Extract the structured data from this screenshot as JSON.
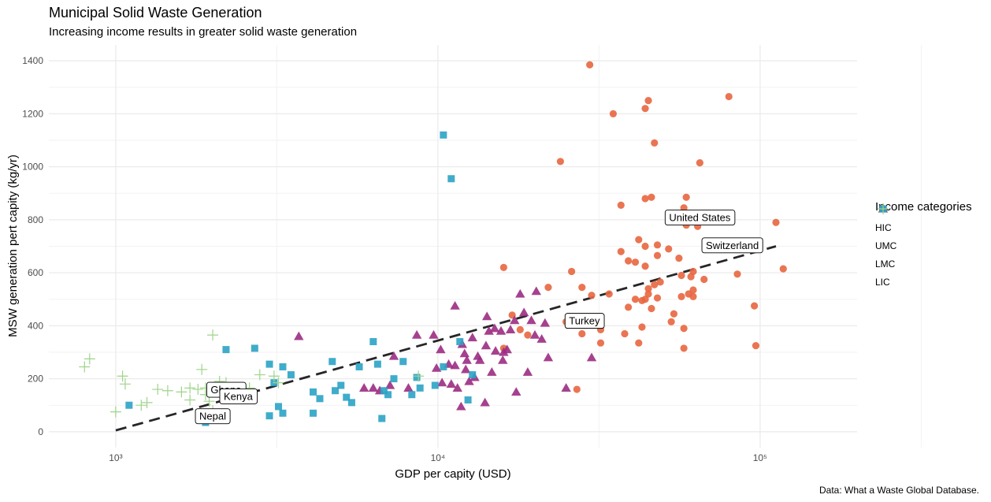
{
  "title": "Municipal Solid Waste Generation",
  "subtitle": "Increasing income results in greater solid waste generation",
  "caption": "Data: What a Waste Global Database.",
  "chart_data": {
    "type": "scatter",
    "x_scale": "log10",
    "xlabel": "GDP per capity (USD)",
    "ylabel": "MSW generation pert capity (kg/yr)",
    "xlim": [
      620,
      200000
    ],
    "ylim": [
      -60,
      1460
    ],
    "grid": true,
    "x_ticks": [
      1000,
      10000,
      100000
    ],
    "x_tick_labels": [
      "10³",
      "10⁴",
      "10⁵"
    ],
    "y_ticks": [
      0,
      200,
      400,
      600,
      800,
      1000,
      1200,
      1400
    ],
    "y_tick_labels": [
      "0",
      "200",
      "400",
      "600",
      "800",
      "1000",
      "1200",
      "1400"
    ],
    "legend": {
      "title": "Income categories",
      "position": "right"
    },
    "series": [
      {
        "name": "HIC",
        "marker": "circle",
        "color": "#E8663F",
        "points": [
          [
            29600,
            1385
          ],
          [
            80000,
            1265
          ],
          [
            45000,
            1250
          ],
          [
            44000,
            1220
          ],
          [
            35000,
            1200
          ],
          [
            47000,
            1090
          ],
          [
            24000,
            1020
          ],
          [
            65000,
            1015
          ],
          [
            59000,
            885
          ],
          [
            46000,
            885
          ],
          [
            44000,
            880
          ],
          [
            37000,
            855
          ],
          [
            58000,
            845
          ],
          [
            59000,
            780
          ],
          [
            64000,
            775
          ],
          [
            112000,
            790
          ],
          [
            42000,
            725
          ],
          [
            44000,
            700
          ],
          [
            48000,
            705
          ],
          [
            52000,
            690
          ],
          [
            37000,
            680
          ],
          [
            48000,
            665
          ],
          [
            56000,
            655
          ],
          [
            39000,
            645
          ],
          [
            41000,
            640
          ],
          [
            44000,
            625
          ],
          [
            26000,
            605
          ],
          [
            16000,
            620
          ],
          [
            118000,
            615
          ],
          [
            62000,
            605
          ],
          [
            57000,
            590
          ],
          [
            61000,
            585
          ],
          [
            85000,
            595
          ],
          [
            49000,
            565
          ],
          [
            47000,
            555
          ],
          [
            67000,
            575
          ],
          [
            22000,
            545
          ],
          [
            28000,
            545
          ],
          [
            45000,
            540
          ],
          [
            62000,
            535
          ],
          [
            34000,
            520
          ],
          [
            45000,
            520
          ],
          [
            60000,
            520
          ],
          [
            48000,
            505
          ],
          [
            41000,
            500
          ],
          [
            62000,
            510
          ],
          [
            30000,
            515
          ],
          [
            44000,
            500
          ],
          [
            43000,
            495
          ],
          [
            57000,
            510
          ],
          [
            39000,
            470
          ],
          [
            96000,
            475
          ],
          [
            46000,
            465
          ],
          [
            18000,
            385
          ],
          [
            43000,
            395
          ],
          [
            58000,
            390
          ],
          [
            25000,
            415
          ],
          [
            32000,
            385
          ],
          [
            53000,
            415
          ],
          [
            54000,
            445
          ],
          [
            28000,
            370
          ],
          [
            38000,
            370
          ],
          [
            19000,
            365
          ],
          [
            32000,
            335
          ],
          [
            42000,
            335
          ],
          [
            58000,
            315
          ],
          [
            97000,
            325
          ],
          [
            27000,
            160
          ],
          [
            16000,
            315
          ],
          [
            17000,
            440
          ]
        ]
      },
      {
        "name": "UMC",
        "marker": "triangle",
        "color": "#9B2C82",
        "points": [
          [
            3700,
            360
          ],
          [
            7300,
            285
          ],
          [
            8600,
            365
          ],
          [
            9700,
            365
          ],
          [
            10200,
            310
          ],
          [
            10800,
            255
          ],
          [
            11300,
            475
          ],
          [
            11900,
            330
          ],
          [
            12100,
            295
          ],
          [
            12300,
            270
          ],
          [
            12800,
            355
          ],
          [
            13300,
            285
          ],
          [
            14200,
            435
          ],
          [
            14400,
            380
          ],
          [
            15000,
            390
          ],
          [
            15700,
            380
          ],
          [
            16800,
            385
          ],
          [
            18000,
            520
          ],
          [
            18500,
            450
          ],
          [
            19500,
            420
          ],
          [
            20200,
            530
          ],
          [
            21000,
            350
          ],
          [
            22000,
            280
          ],
          [
            10300,
            185
          ],
          [
            11000,
            180
          ],
          [
            11500,
            165
          ],
          [
            11800,
            95
          ],
          [
            12500,
            190
          ],
          [
            14000,
            110
          ],
          [
            14700,
            225
          ],
          [
            15100,
            305
          ],
          [
            16000,
            300
          ],
          [
            17500,
            150
          ],
          [
            19000,
            225
          ],
          [
            20000,
            365
          ],
          [
            21500,
            410
          ],
          [
            25000,
            165
          ],
          [
            30000,
            280
          ],
          [
            5900,
            165
          ],
          [
            6300,
            165
          ],
          [
            6600,
            155
          ],
          [
            7100,
            175
          ],
          [
            8100,
            165
          ],
          [
            9900,
            240
          ],
          [
            11300,
            250
          ],
          [
            12200,
            235
          ],
          [
            13000,
            205
          ],
          [
            13500,
            270
          ],
          [
            14100,
            325
          ],
          [
            15900,
            270
          ],
          [
            16400,
            310
          ],
          [
            17300,
            420
          ]
        ]
      },
      {
        "name": "LMC",
        "marker": "square",
        "color": "#2BA3C5",
        "points": [
          [
            10400,
            1120
          ],
          [
            11000,
            955
          ],
          [
            1100,
            100
          ],
          [
            1900,
            35
          ],
          [
            2200,
            310
          ],
          [
            2700,
            315
          ],
          [
            3000,
            255
          ],
          [
            3300,
            245
          ],
          [
            3500,
            215
          ],
          [
            3100,
            185
          ],
          [
            3200,
            95
          ],
          [
            3300,
            70
          ],
          [
            4100,
            70
          ],
          [
            4100,
            150
          ],
          [
            4300,
            125
          ],
          [
            4700,
            265
          ],
          [
            4800,
            155
          ],
          [
            5000,
            175
          ],
          [
            5200,
            130
          ],
          [
            5400,
            110
          ],
          [
            5700,
            245
          ],
          [
            6300,
            340
          ],
          [
            6500,
            255
          ],
          [
            6800,
            155
          ],
          [
            7000,
            140
          ],
          [
            6700,
            50
          ],
          [
            7300,
            200
          ],
          [
            7800,
            265
          ],
          [
            8300,
            140
          ],
          [
            8600,
            205
          ],
          [
            8800,
            165
          ],
          [
            9800,
            175
          ],
          [
            10400,
            245
          ],
          [
            11700,
            340
          ],
          [
            12800,
            215
          ],
          [
            12400,
            120
          ],
          [
            3000,
            60
          ]
        ]
      },
      {
        "name": "LIC",
        "marker": "plus",
        "color": "#9ED48A",
        "points": [
          [
            830,
            275
          ],
          [
            800,
            245
          ],
          [
            1000,
            75
          ],
          [
            1050,
            210
          ],
          [
            1070,
            180
          ],
          [
            1200,
            100
          ],
          [
            1250,
            110
          ],
          [
            1350,
            160
          ],
          [
            1450,
            155
          ],
          [
            1600,
            150
          ],
          [
            1700,
            165
          ],
          [
            1800,
            160
          ],
          [
            1850,
            235
          ],
          [
            1900,
            140
          ],
          [
            2000,
            365
          ],
          [
            1950,
            115
          ],
          [
            2100,
            190
          ],
          [
            2200,
            185
          ],
          [
            2300,
            140
          ],
          [
            2600,
            165
          ],
          [
            2800,
            215
          ],
          [
            3100,
            210
          ],
          [
            3200,
            185
          ],
          [
            8700,
            210
          ],
          [
            2000,
            80
          ],
          [
            1850,
            65
          ],
          [
            2400,
            150
          ],
          [
            1700,
            120
          ],
          [
            1900,
            165
          ]
        ]
      }
    ],
    "trend_line": {
      "style": "dashed",
      "color": "#262626",
      "from": [
        1000,
        5
      ],
      "to": [
        112000,
        700
      ]
    },
    "annotations": [
      {
        "text": "United States",
        "x": 65000,
        "y": 810
      },
      {
        "text": "Switzerland",
        "x": 82000,
        "y": 705
      },
      {
        "text": "Turkey",
        "x": 28500,
        "y": 420
      },
      {
        "text": "Ghana",
        "x": 2200,
        "y": 160
      },
      {
        "text": "Kenya",
        "x": 2400,
        "y": 135
      },
      {
        "text": "Nepal",
        "x": 2000,
        "y": 60
      }
    ]
  }
}
